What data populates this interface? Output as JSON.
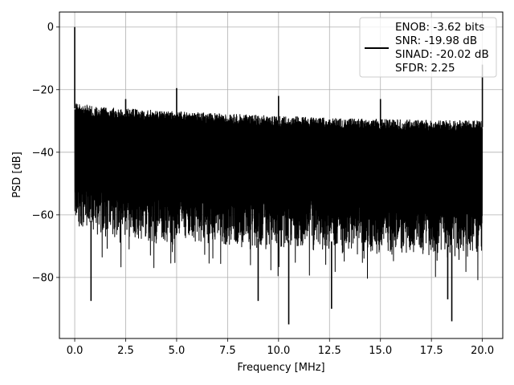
{
  "chart_data": {
    "type": "line",
    "title": "",
    "xlabel": "Frequency [MHz]",
    "ylabel": "PSD [dB]",
    "xlim": [
      -0.75,
      21.0
    ],
    "ylim": [
      -99.5,
      4.8
    ],
    "xticks": [
      0.0,
      2.5,
      5.0,
      7.5,
      10.0,
      12.5,
      15.0,
      17.5,
      20.0
    ],
    "xtick_labels": [
      "0.0",
      "2.5",
      "5.0",
      "7.5",
      "10.0",
      "12.5",
      "15.0",
      "17.5",
      "20.0"
    ],
    "yticks": [
      0,
      -20,
      -40,
      -60,
      -80
    ],
    "ytick_labels": [
      "0",
      "−20",
      "−40",
      "−60",
      "−80"
    ],
    "grid": true,
    "legend_position": "top-right",
    "line_color": "#000000",
    "series": [
      {
        "legend_lines": [
          "ENOB: -3.62 bits",
          "SNR: -19.98 dB",
          "SINAD: -20.02 dB",
          "SFDR: 2.25"
        ],
        "noise_top_envelope": [
          [
            0.0,
            -24
          ],
          [
            1.0,
            -25.5
          ],
          [
            5.0,
            -27
          ],
          [
            10.0,
            -28.5
          ],
          [
            15.0,
            -29.5
          ],
          [
            20.0,
            -30
          ]
        ],
        "noise_bottom_envelope": [
          [
            0.0,
            -60
          ],
          [
            2.0,
            -65
          ],
          [
            10.0,
            -68
          ],
          [
            20.0,
            -70
          ]
        ],
        "spikes": [
          {
            "x": 0.0,
            "y": 0.0
          },
          {
            "x": 2.5,
            "y": -23
          },
          {
            "x": 5.0,
            "y": -19.5
          },
          {
            "x": 10.0,
            "y": -22
          },
          {
            "x": 15.0,
            "y": -23
          },
          {
            "x": 20.0,
            "y": -12
          }
        ],
        "deep_dips": [
          {
            "x": 0.8,
            "y": -87.5
          },
          {
            "x": 9.0,
            "y": -87.5
          },
          {
            "x": 10.5,
            "y": -95
          },
          {
            "x": 12.6,
            "y": -90
          },
          {
            "x": 18.5,
            "y": -94
          },
          {
            "x": 18.3,
            "y": -87
          }
        ]
      }
    ]
  }
}
